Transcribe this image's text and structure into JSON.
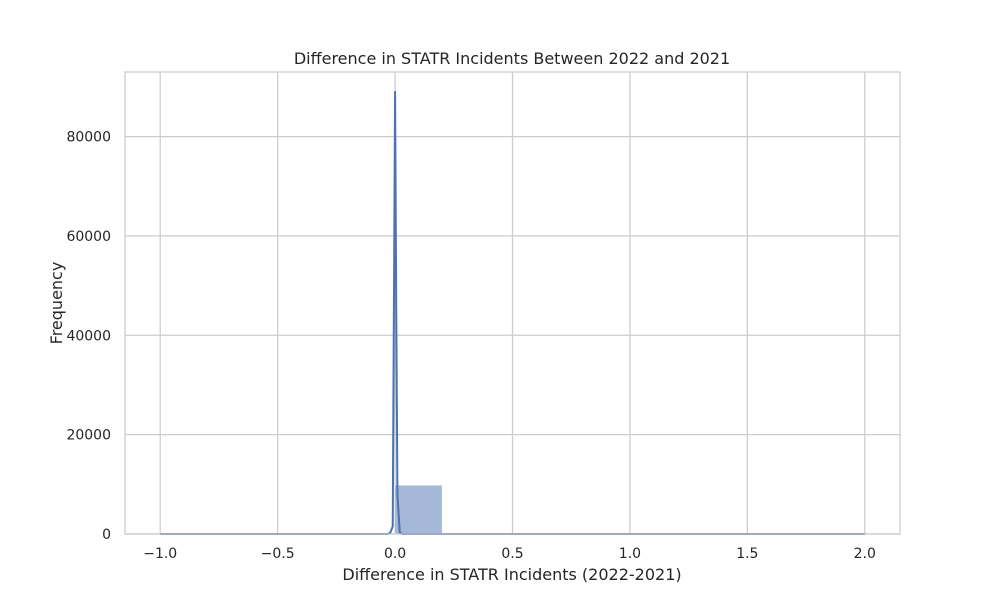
{
  "chart_data": {
    "type": "bar",
    "title": "Difference in STATR Incidents Between 2022 and 2021",
    "xlabel": "Difference in STATR Incidents (2022-2021)",
    "ylabel": "Frequency",
    "xlim": [
      -1.15,
      2.15
    ],
    "ylim": [
      0,
      93000
    ],
    "x_ticks": [
      -1.0,
      -0.5,
      0.0,
      0.5,
      1.0,
      1.5,
      2.0
    ],
    "x_tick_labels": [
      "−1.0",
      "−0.5",
      "0.0",
      "0.5",
      "1.0",
      "1.5",
      "2.0"
    ],
    "y_ticks": [
      0,
      20000,
      40000,
      60000,
      80000
    ],
    "y_tick_labels": [
      "0",
      "20000",
      "40000",
      "60000",
      "80000"
    ],
    "grid": true,
    "legend": "none",
    "histogram": {
      "name": "",
      "color": "#4c72b0",
      "opacity": 0.5,
      "bins": [
        {
          "x0": -1.0,
          "x1": -0.8,
          "count": 0
        },
        {
          "x0": -0.8,
          "x1": -0.6,
          "count": 0
        },
        {
          "x0": -0.6,
          "x1": -0.4,
          "count": 0
        },
        {
          "x0": -0.4,
          "x1": -0.2,
          "count": 0
        },
        {
          "x0": -0.2,
          "x1": 0.0,
          "count": 0
        },
        {
          "x0": 0.0,
          "x1": 0.2,
          "count": 9800
        },
        {
          "x0": 0.2,
          "x1": 0.4,
          "count": 0
        },
        {
          "x0": 0.4,
          "x1": 0.6,
          "count": 0
        },
        {
          "x0": 0.6,
          "x1": 0.8,
          "count": 0
        },
        {
          "x0": 0.8,
          "x1": 1.0,
          "count": 0
        },
        {
          "x0": 1.0,
          "x1": 1.2,
          "count": 2
        },
        {
          "x0": 1.2,
          "x1": 1.4,
          "count": 0
        },
        {
          "x0": 1.4,
          "x1": 1.6,
          "count": 0
        },
        {
          "x0": 1.6,
          "x1": 1.8,
          "count": 0
        },
        {
          "x0": 1.8,
          "x1": 2.0,
          "count": 1
        }
      ]
    },
    "kde": {
      "name": "",
      "color": "#4c72b0",
      "x": [
        -1.0,
        -0.5,
        -0.03,
        -0.02,
        -0.01,
        -0.005,
        0.0,
        0.005,
        0.01,
        0.02,
        0.03,
        0.05,
        0.5,
        1.0,
        2.0
      ],
      "y": [
        0,
        0,
        0,
        300,
        1500,
        45000,
        89000,
        45000,
        8000,
        300,
        0,
        0,
        0,
        0,
        0
      ]
    }
  }
}
